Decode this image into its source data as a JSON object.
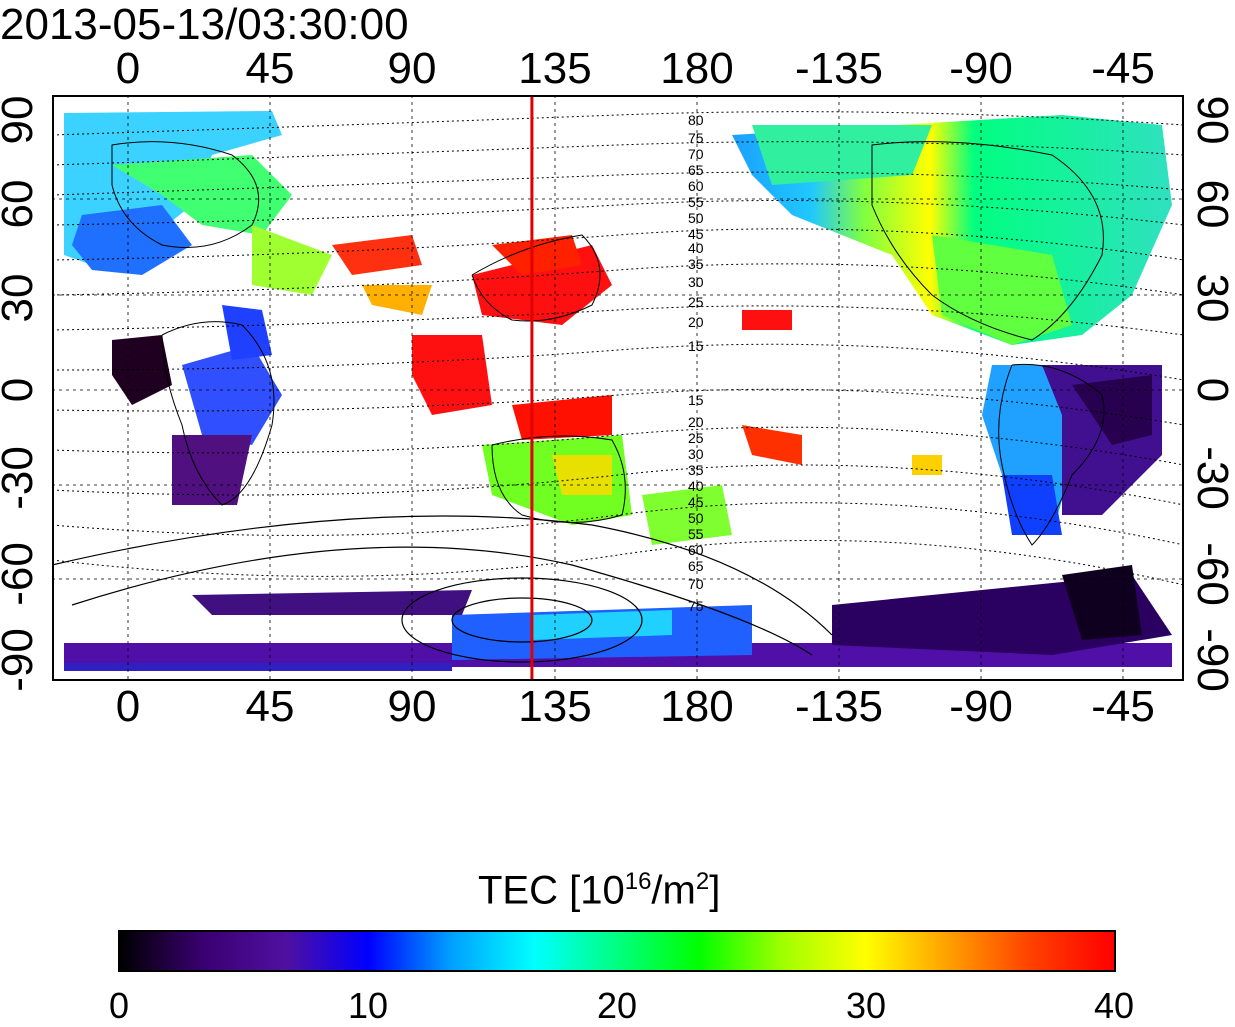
{
  "title": "2013-05-13/03:30:00",
  "axes": {
    "lon_labels": [
      "0",
      "45",
      "90",
      "135",
      "180",
      "-135",
      "-90",
      "-45"
    ],
    "lat_labels": [
      "90",
      "60",
      "30",
      "0",
      "-30",
      "-60",
      "-90"
    ]
  },
  "contour_labels": {
    "north": [
      "80",
      "75",
      "70",
      "65",
      "60",
      "55",
      "50",
      "45",
      "40",
      "35",
      "30",
      "25",
      "20",
      "15"
    ],
    "south": [
      "15",
      "20",
      "25",
      "30",
      "35",
      "40",
      "45",
      "50",
      "55",
      "60",
      "65",
      "70",
      "75"
    ]
  },
  "marker": {
    "longitude": 128,
    "color": "#e00000"
  },
  "colorbar": {
    "title_main": "TEC  [10",
    "title_exp": "16",
    "title_unit": "/m",
    "title_exp2": "2",
    "title_close": "]",
    "tick_labels": [
      "0",
      "10",
      "20",
      "30",
      "40"
    ],
    "range": [
      0,
      40
    ],
    "colors": [
      "#000000",
      "#3a0070",
      "#5010a0",
      "#0000ff",
      "#00a0ff",
      "#00ffff",
      "#00ff80",
      "#00ff00",
      "#a0ff00",
      "#ffff00",
      "#ffa000",
      "#ff4000",
      "#ff0000"
    ]
  }
}
